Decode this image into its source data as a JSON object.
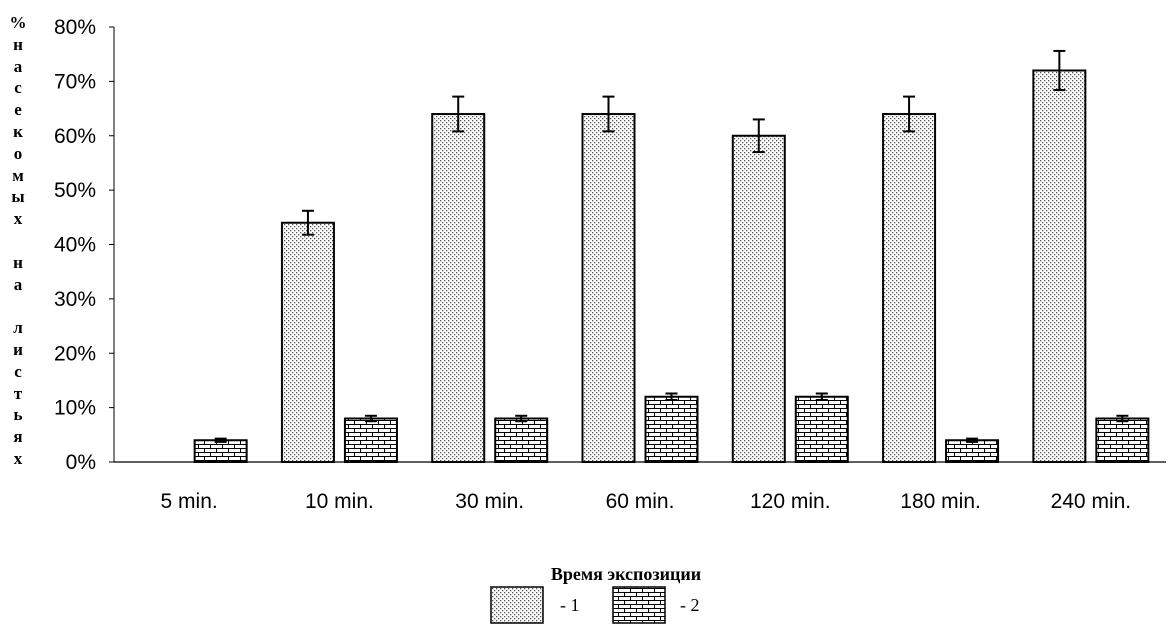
{
  "chart_data": {
    "type": "bar",
    "ylabel_chars": [
      "%",
      "н",
      "а",
      "с",
      "е",
      "к",
      "о",
      "м",
      "ы",
      "х",
      "",
      "н",
      "а",
      "",
      "л",
      "и",
      "с",
      "т",
      "ь",
      "я",
      "х"
    ],
    "xlabel": "Время экспозиции",
    "categories": [
      "5 min.",
      "10 min.",
      "30 min.",
      "60 min.",
      "120 min.",
      "180 min.",
      "240 min."
    ],
    "y_ticks": [
      "0%",
      "10%",
      "20%",
      "30%",
      "40%",
      "50%",
      "60%",
      "70%",
      "80%"
    ],
    "ylim": [
      0,
      80
    ],
    "grid": false,
    "legend_position": "bottom-center",
    "series": [
      {
        "name": "- 1",
        "pattern": "dots",
        "values": [
          0,
          44,
          64,
          64,
          60,
          64,
          72
        ],
        "errors": [
          0,
          2.2,
          3.2,
          3.2,
          3.0,
          3.2,
          3.6
        ]
      },
      {
        "name": "- 2",
        "pattern": "bricks",
        "values": [
          4,
          8,
          8,
          12,
          12,
          4,
          8
        ],
        "errors": [
          0.3,
          0.5,
          0.5,
          0.6,
          0.6,
          0.3,
          0.5
        ]
      }
    ]
  }
}
